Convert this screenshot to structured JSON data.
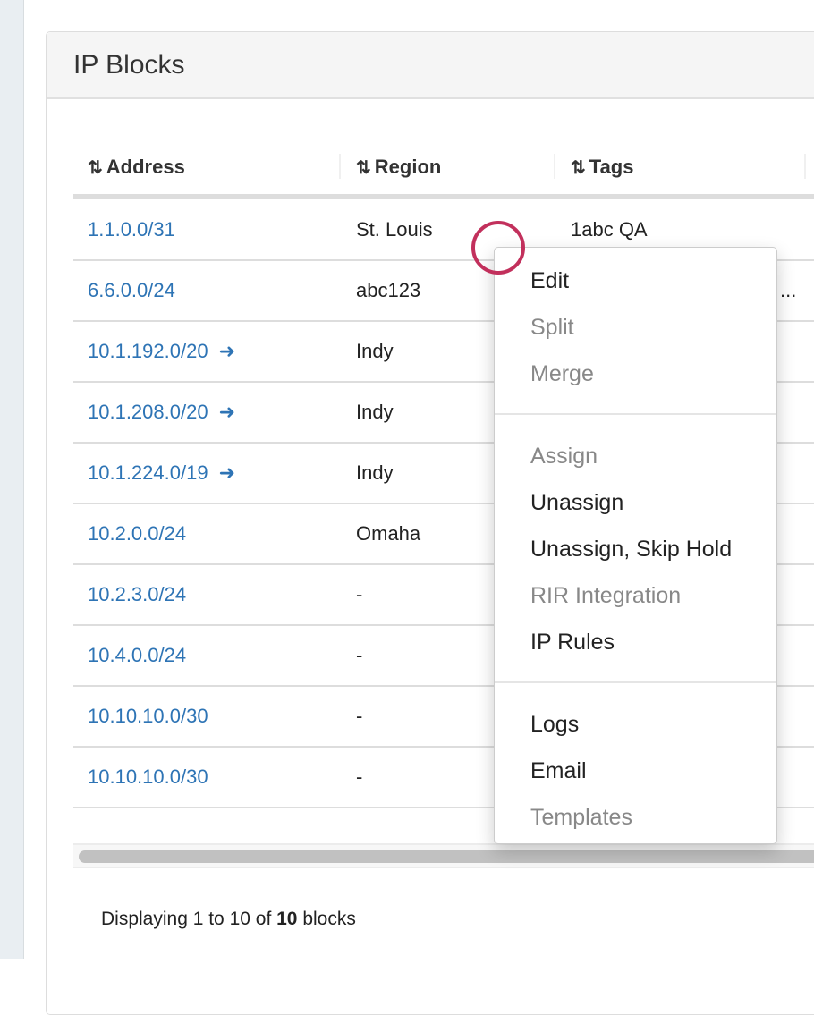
{
  "panel": {
    "title": "IP Blocks"
  },
  "table": {
    "columns": [
      "Address",
      "Region",
      "Tags"
    ],
    "rows": [
      {
        "address": "1.1.0.0/31",
        "region": "St. Louis",
        "tags": "1abc QA",
        "arrow": false
      },
      {
        "address": "6.6.0.0/24",
        "region": "abc123",
        "tags": "...",
        "arrow": false
      },
      {
        "address": "10.1.192.0/20",
        "region": "Indy",
        "tags": "",
        "arrow": true
      },
      {
        "address": "10.1.208.0/20",
        "region": "Indy",
        "tags": "",
        "arrow": true
      },
      {
        "address": "10.1.224.0/19",
        "region": "Indy",
        "tags": "",
        "arrow": true
      },
      {
        "address": "10.2.0.0/24",
        "region": "Omaha",
        "tags": "",
        "arrow": false
      },
      {
        "address": "10.2.3.0/24",
        "region": "-",
        "tags": "",
        "arrow": false
      },
      {
        "address": "10.4.0.0/24",
        "region": "-",
        "tags": "",
        "arrow": false
      },
      {
        "address": "10.10.10.0/30",
        "region": "-",
        "tags": "",
        "arrow": false
      },
      {
        "address": "10.10.10.0/30",
        "region": "-",
        "tags": "",
        "arrow": false
      }
    ]
  },
  "footer": {
    "prefix": "Displaying 1 to 10 of ",
    "count": "10",
    "suffix": " blocks"
  },
  "context_menu": {
    "groups": [
      [
        {
          "label": "Edit",
          "enabled": true
        },
        {
          "label": "Split",
          "enabled": false
        },
        {
          "label": "Merge",
          "enabled": false
        }
      ],
      [
        {
          "label": "Assign",
          "enabled": false
        },
        {
          "label": "Unassign",
          "enabled": true
        },
        {
          "label": "Unassign, Skip Hold",
          "enabled": true
        },
        {
          "label": "RIR Integration",
          "enabled": false
        },
        {
          "label": "IP Rules",
          "enabled": true
        }
      ],
      [
        {
          "label": "Logs",
          "enabled": true
        },
        {
          "label": "Email",
          "enabled": true
        },
        {
          "label": "Templates",
          "enabled": false
        }
      ]
    ]
  },
  "colors": {
    "link": "#2e74b5",
    "cursor": "#c2305c"
  }
}
